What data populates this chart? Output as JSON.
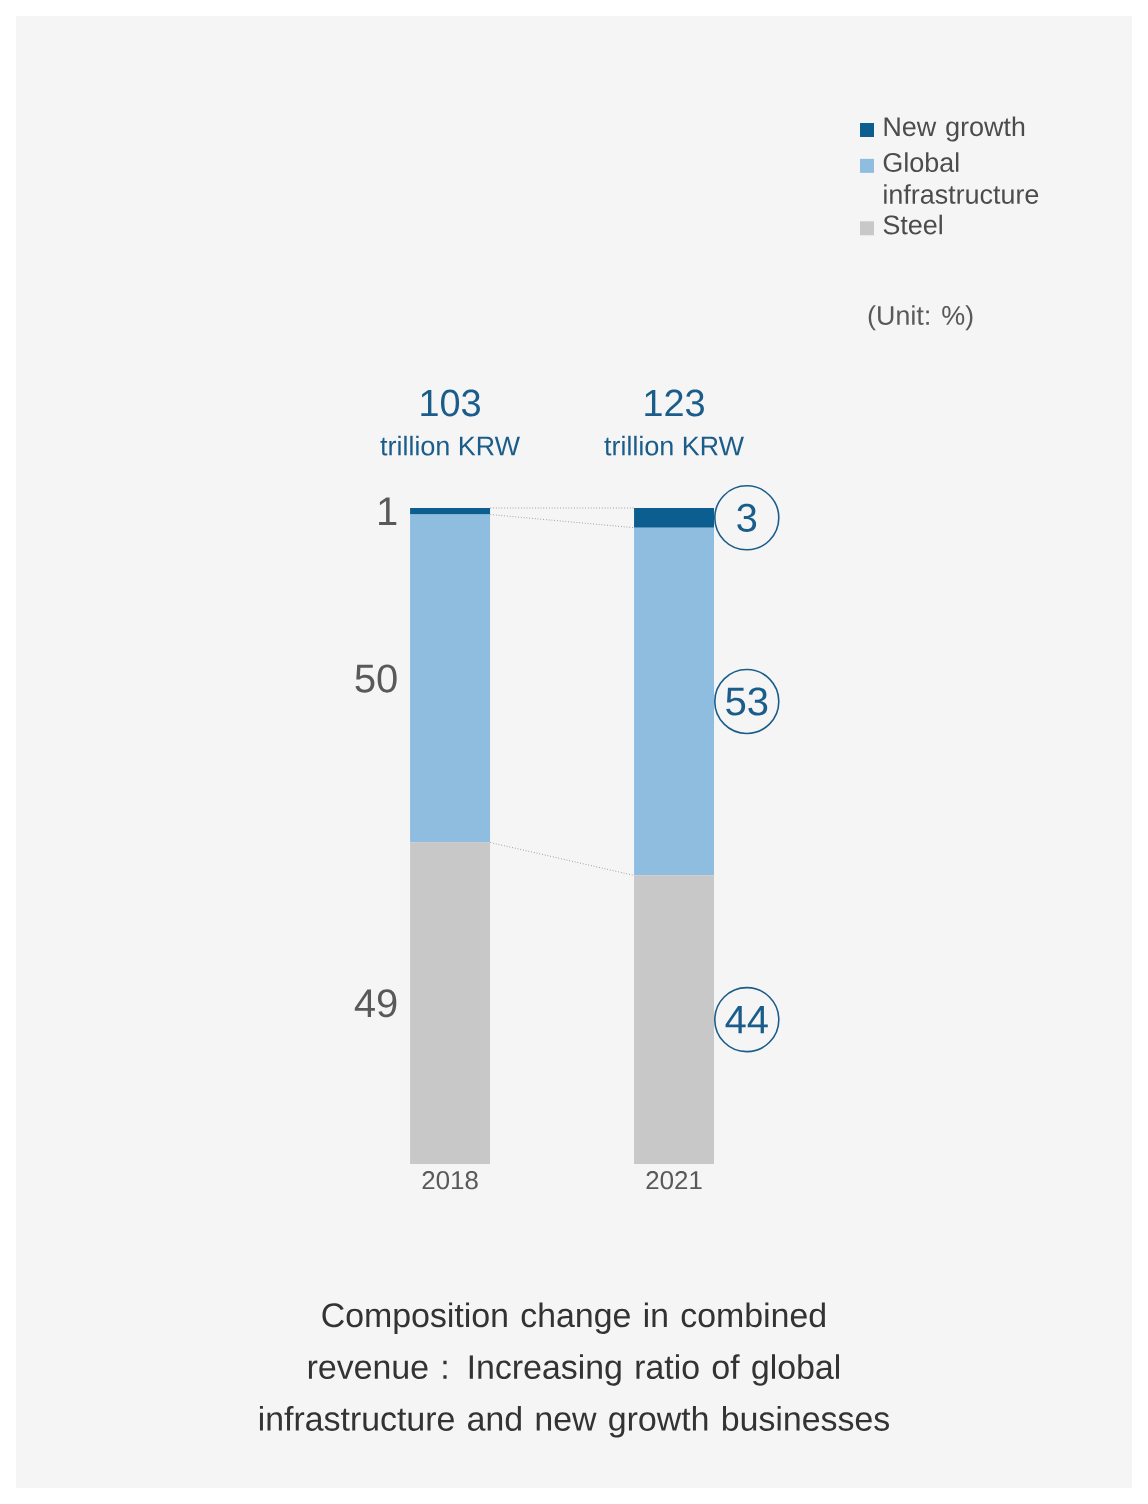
{
  "chart_data": {
    "type": "bar",
    "stacked": true,
    "title": "Composition change in combined revenue : Increasing ratio of global infrastructure and new growth businesses",
    "categories": [
      "2018",
      "2021"
    ],
    "series": [
      {
        "name": "Steel",
        "color": "#c8c8c8",
        "values": [
          49,
          44
        ]
      },
      {
        "name": "Global infrastructure",
        "color": "#8fbde0",
        "values": [
          50,
          53
        ]
      },
      {
        "name": "New growth",
        "color": "#0b5e8f",
        "values": [
          1,
          3
        ]
      }
    ],
    "data_labels": true,
    "annotations": [
      {
        "text": "103",
        "x": "2018",
        "y": 100
      },
      {
        "text": "123",
        "x": "2021",
        "y": 100
      },
      "trillion KRW",
      "trillion KRW",
      "(Unit: %)"
    ],
    "legend": "top right"
  }
}
